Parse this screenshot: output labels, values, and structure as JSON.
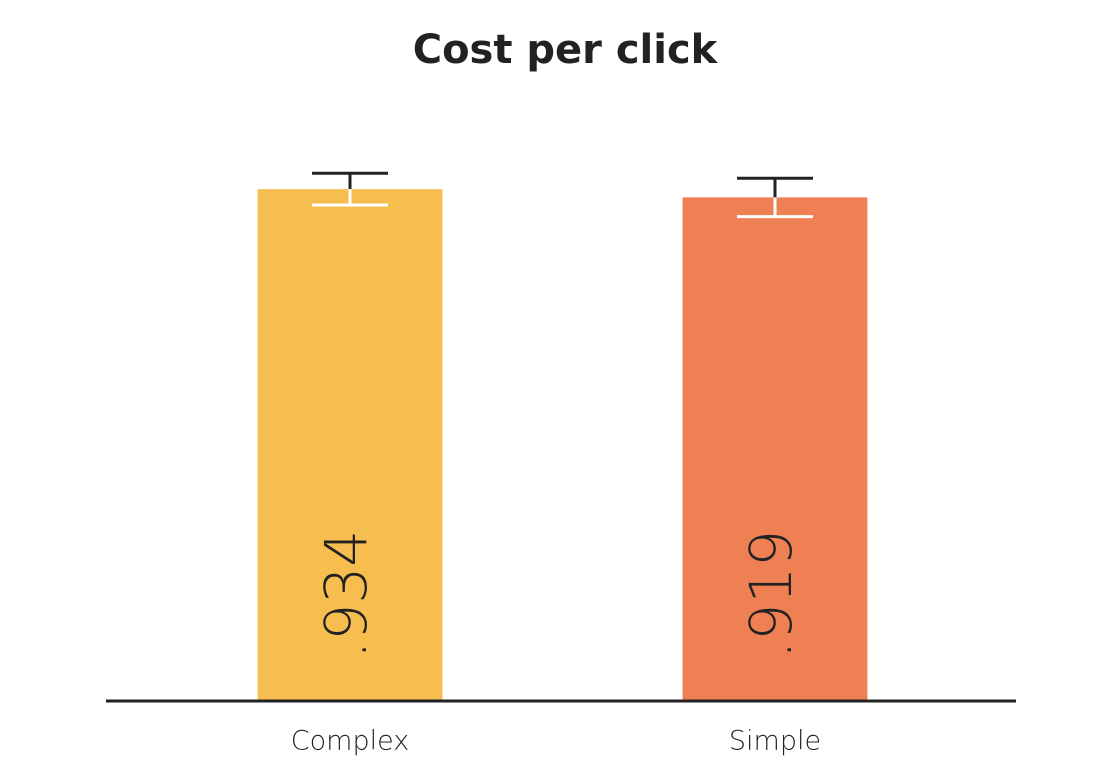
{
  "chart_data": {
    "type": "bar",
    "title": "Cost per click",
    "categories": [
      "Complex",
      "Simple"
    ],
    "series": [
      {
        "colors": [
          "#f6bd4f",
          "#ef8054"
        ],
        "values": [
          0.934,
          0.919
        ],
        "value_labels": [
          ".934",
          ".919"
        ],
        "errors": [
          0.029,
          0.035
        ]
      }
    ],
    "ylim": [
      0,
      1.0
    ]
  }
}
